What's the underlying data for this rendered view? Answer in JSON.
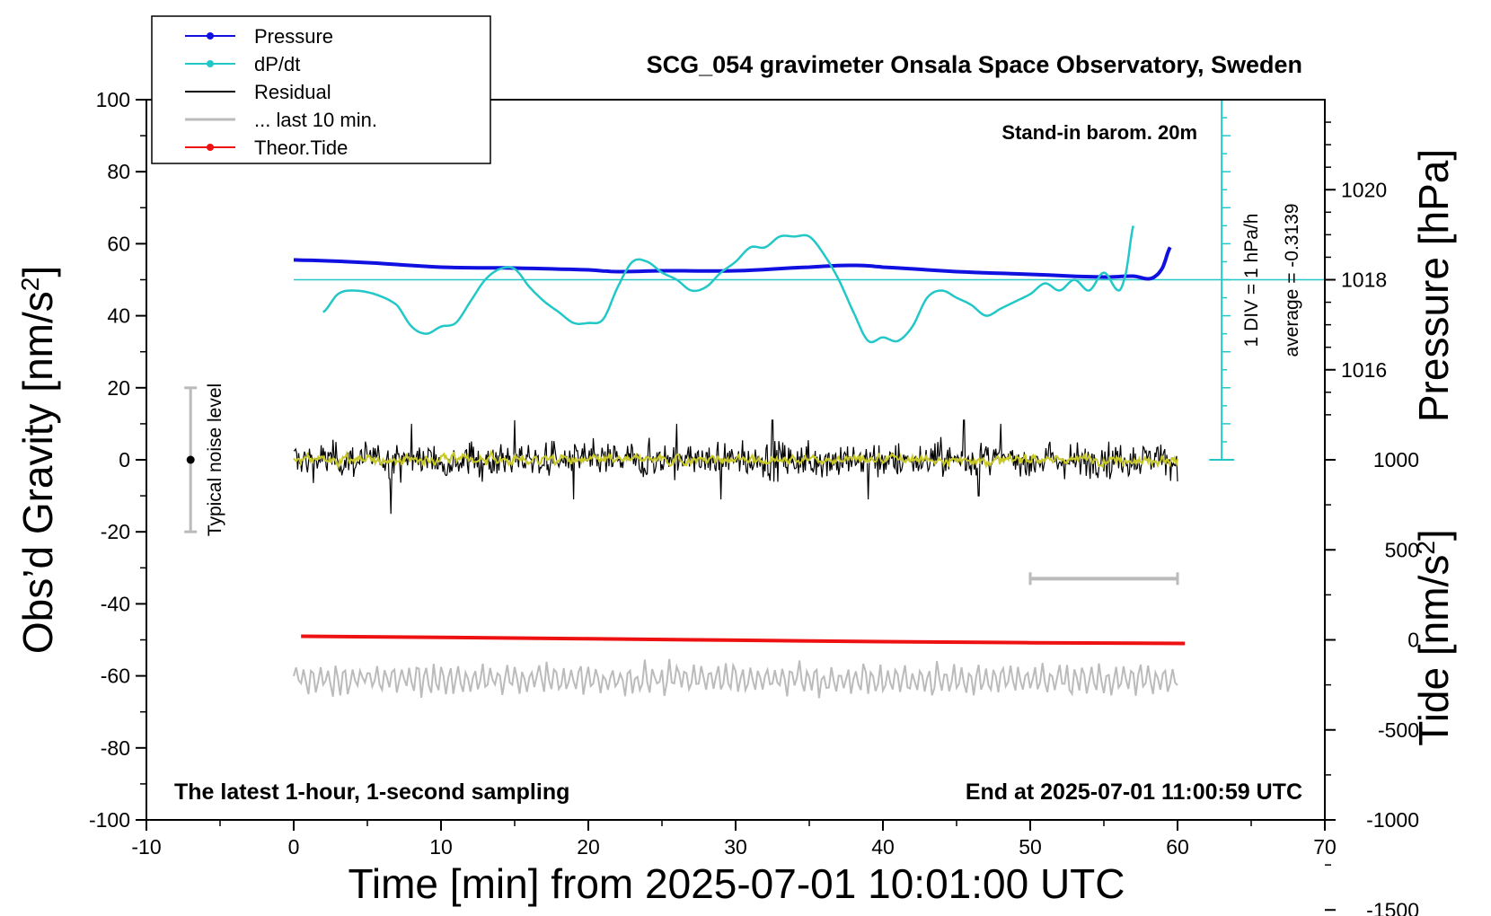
{
  "chart_data": {
    "type": "line",
    "title": "SCG_054 gravimeter Onsala Space Observatory, Sweden",
    "xlabel": "Time [min] from 2025-07-01 10:01:00 UTC",
    "xlim": [
      -10,
      70
    ],
    "xticks": [
      -10,
      0,
      10,
      20,
      30,
      40,
      50,
      60,
      70
    ],
    "left_axis": {
      "label_main": "Obs’d Gravity [nm/s",
      "label_sup": "2",
      "label_end": "]",
      "ylim": [
        -100,
        100
      ],
      "ticks": [
        100,
        80,
        60,
        40,
        20,
        0,
        -20,
        -40,
        -60,
        -80,
        -100
      ]
    },
    "pressure_axis": {
      "label": "Pressure [hPa]",
      "ticks": [
        1020,
        1018,
        1016
      ],
      "center": 1018,
      "hpa_per_nm": 0.08
    },
    "tide_axis": {
      "label_main": "Tide [nm/s",
      "label_sup": "2",
      "label_end": "]",
      "ticks": [
        1000,
        500,
        0,
        -500,
        -1000,
        -1500
      ],
      "tide_zero_grav": -50,
      "units_per_nm": 20
    },
    "annotations": {
      "barom": "Stand-in barom. 20m",
      "div": "1 DIV = 1 hPa/h",
      "average": "average = -0.3139",
      "noise": "Typical noise level",
      "bottom_left": "The latest 1-hour, 1-second sampling",
      "bottom_right": "End at 2025-07-01 11:00:59 UTC"
    },
    "noise_bar": {
      "x": -7,
      "y_center": 0,
      "y_low": -20,
      "y_high": 20
    },
    "last10_bar": {
      "x_start": 50,
      "x_end": 60,
      "y": -33
    },
    "dpdt_ref_y": 50,
    "legend": {
      "placement": "top-left",
      "entries": [
        {
          "label": "Pressure",
          "color": "#1010e0",
          "marker": true
        },
        {
          "label": "dP/dt",
          "color": "#22c8c8",
          "marker": true
        },
        {
          "label": "Residual",
          "color": "#000000",
          "marker": false
        },
        {
          "label": "... last 10 min.",
          "color": "#bbbbbb",
          "marker": false
        },
        {
          "label": "Theor.Tide",
          "color": "#ee1111",
          "marker": true
        }
      ]
    },
    "series": [
      {
        "name": "Pressure",
        "color": "#1010e0",
        "unit": "hPa",
        "x": [
          0,
          5,
          10,
          15,
          20,
          22,
          25,
          30,
          35,
          38,
          40,
          45,
          50,
          55,
          57,
          58,
          58.5,
          59,
          59.5
        ],
        "y": [
          1018.44,
          1018.38,
          1018.28,
          1018.26,
          1018.22,
          1018.18,
          1018.2,
          1018.2,
          1018.28,
          1018.32,
          1018.28,
          1018.18,
          1018.12,
          1018.06,
          1018.08,
          1018.02,
          1018.08,
          1018.28,
          1018.72
        ]
      },
      {
        "name": "dP/dt",
        "color": "#22c8c8",
        "unit": "gravity-axis",
        "x": [
          2,
          3,
          4,
          5.5,
          7,
          8,
          9,
          10,
          11,
          12,
          13,
          14,
          15,
          16,
          17,
          18,
          19,
          20,
          21,
          22,
          23,
          24,
          25,
          26,
          27,
          28,
          29,
          30,
          31,
          32,
          33,
          34,
          35,
          36,
          37,
          38,
          39,
          40,
          41,
          42,
          43,
          44,
          45,
          46,
          47,
          48,
          49,
          50,
          51,
          52,
          53,
          54,
          55,
          56,
          56.5,
          57
        ],
        "y": [
          41,
          46,
          47,
          46,
          43,
          37,
          35,
          37,
          38,
          44,
          50,
          53,
          53,
          48,
          44,
          41,
          38,
          38,
          39,
          48,
          55,
          55,
          52,
          50,
          47,
          48,
          52,
          55,
          59,
          59,
          62,
          62,
          62,
          57,
          50,
          41,
          33,
          34,
          33,
          37,
          45,
          47,
          45,
          43,
          40,
          42,
          44,
          46,
          49,
          47,
          50,
          47,
          52,
          47,
          52,
          65
        ]
      },
      {
        "name": "Residual",
        "color": "#000000",
        "unit": "nm/s²",
        "x_start": 0,
        "x_end": 60,
        "count": 900,
        "amplitude": 4.5,
        "spikes": [
          [
            6.6,
            14
          ],
          [
            6.6,
            -15
          ],
          [
            8,
            10
          ],
          [
            15,
            11
          ],
          [
            19,
            -11
          ],
          [
            26,
            10
          ],
          [
            29,
            -11
          ],
          [
            32.5,
            11
          ],
          [
            39,
            -11
          ],
          [
            45.5,
            11
          ],
          [
            46.5,
            -10
          ],
          [
            48,
            10
          ]
        ],
        "smooth_color": "#c8c828",
        "smooth_amplitude": 1.4
      },
      {
        "name": "... last 10 min.",
        "color": "#bbbbbb",
        "unit": "nm/s²",
        "x_start": 0,
        "x_end": 60,
        "count": 360,
        "baseline": -61,
        "amplitude": 4,
        "min": -71,
        "max": -54
      },
      {
        "name": "Theor.Tide",
        "color": "#ee1111",
        "unit": "nm/s²",
        "x": [
          0.5,
          10,
          20,
          30,
          40,
          50,
          60.5
        ],
        "y": [
          -49,
          -49.3,
          -49.7,
          -50.1,
          -50.5,
          -50.8,
          -51
        ]
      }
    ]
  }
}
